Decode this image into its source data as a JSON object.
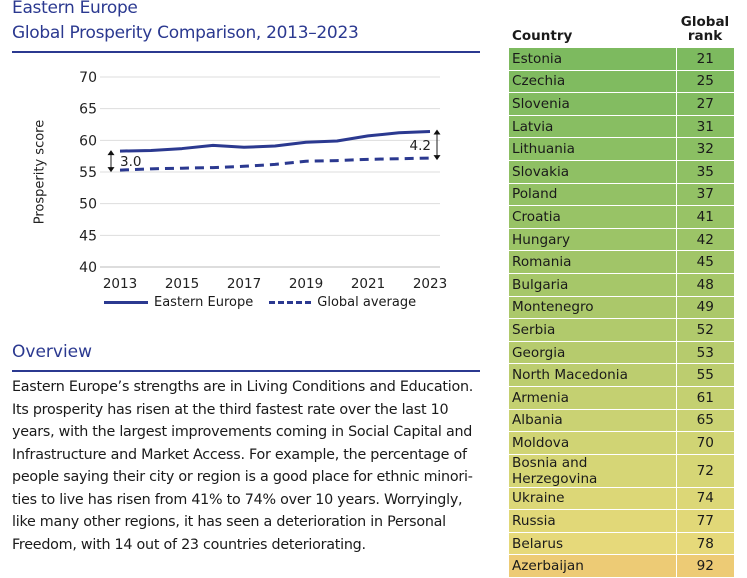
{
  "header": {
    "line1": "Eastern Europe",
    "line2": "Global Prosperity Comparison, 2013–2023"
  },
  "chart_data": {
    "type": "line",
    "title": "Global Prosperity Comparison, 2013–2023",
    "xlabel": "",
    "ylabel": "Prosperity score",
    "x": [
      2013,
      2014,
      2015,
      2016,
      2017,
      2018,
      2019,
      2020,
      2021,
      2022,
      2023
    ],
    "x_ticks": [
      "2013",
      "2015",
      "2017",
      "2019",
      "2021",
      "2023"
    ],
    "y_ticks": [
      "70",
      "65",
      "60",
      "55",
      "50",
      "45",
      "40"
    ],
    "ylim": [
      40,
      70
    ],
    "grid": true,
    "legend_position": "bottom",
    "series": [
      {
        "name": "Eastern Europe",
        "style": "solid",
        "color": "#2b3990",
        "values": [
          58.3,
          58.4,
          58.7,
          59.2,
          58.9,
          59.1,
          59.7,
          59.9,
          60.7,
          61.2,
          61.4
        ]
      },
      {
        "name": "Global average",
        "style": "dashed",
        "color": "#2b3990",
        "values": [
          55.3,
          55.5,
          55.6,
          55.7,
          55.9,
          56.2,
          56.7,
          56.8,
          57.0,
          57.1,
          57.2
        ]
      }
    ],
    "annotations": [
      {
        "text": "3.0",
        "x": 2013
      },
      {
        "text": "4.2",
        "x": 2023
      }
    ]
  },
  "overview": {
    "title": "Overview",
    "text": "Eastern Europe’s strengths are in Living Conditions and Education. Its prosperity has risen at the third fastest rate over the last 10 years, with the largest improvements coming in Social Capital and Infrastructure and Market Access. For example, the percentage of people saying their city or region is a good place for ethnic minori­ties to live has risen from 41% to 74% over 10 years. Worryingly, like many other regions, it has seen a deterioration in Personal Freedom, with 14 out of 23 countries deteriorating."
  },
  "table": {
    "headers": [
      "Country",
      "Global rank"
    ],
    "rows": [
      {
        "country": "Estonia",
        "rank": "21",
        "color": "#7dba5f"
      },
      {
        "country": "Czechia",
        "rank": "25",
        "color": "#80bb60"
      },
      {
        "country": "Slovenia",
        "rank": "27",
        "color": "#83bc61"
      },
      {
        "country": "Latvia",
        "rank": "31",
        "color": "#88be62"
      },
      {
        "country": "Lithuania",
        "rank": "32",
        "color": "#8bbf63"
      },
      {
        "country": "Slovakia",
        "rank": "35",
        "color": "#8fc064"
      },
      {
        "country": "Poland",
        "rank": "37",
        "color": "#93c165"
      },
      {
        "country": "Croatia",
        "rank": "41",
        "color": "#98c366"
      },
      {
        "country": "Hungary",
        "rank": "42",
        "color": "#9cc467"
      },
      {
        "country": "Romania",
        "rank": "45",
        "color": "#a1c568"
      },
      {
        "country": "Bulgaria",
        "rank": "48",
        "color": "#a6c769"
      },
      {
        "country": "Montenegro",
        "rank": "49",
        "color": "#abc86a"
      },
      {
        "country": "Serbia",
        "rank": "52",
        "color": "#b1ca6c"
      },
      {
        "country": "Georgia",
        "rank": "53",
        "color": "#b6cb6d"
      },
      {
        "country": "North Macedonia",
        "rank": "55",
        "color": "#bccd6f"
      },
      {
        "country": "Armenia",
        "rank": "61",
        "color": "#c4d071"
      },
      {
        "country": "Albania",
        "rank": "65",
        "color": "#cad273"
      },
      {
        "country": "Moldova",
        "rank": "70",
        "color": "#d0d474"
      },
      {
        "country": "Bosnia and Herzegovina",
        "rank": "72",
        "color": "#d6d676"
      },
      {
        "country": "Ukraine",
        "rank": "74",
        "color": "#dcd777"
      },
      {
        "country": "Russia",
        "rank": "77",
        "color": "#e1d878"
      },
      {
        "country": "Belarus",
        "rank": "78",
        "color": "#e6d97a"
      },
      {
        "country": "Azerbaijan",
        "rank": "92",
        "color": "#edcb75"
      }
    ]
  }
}
